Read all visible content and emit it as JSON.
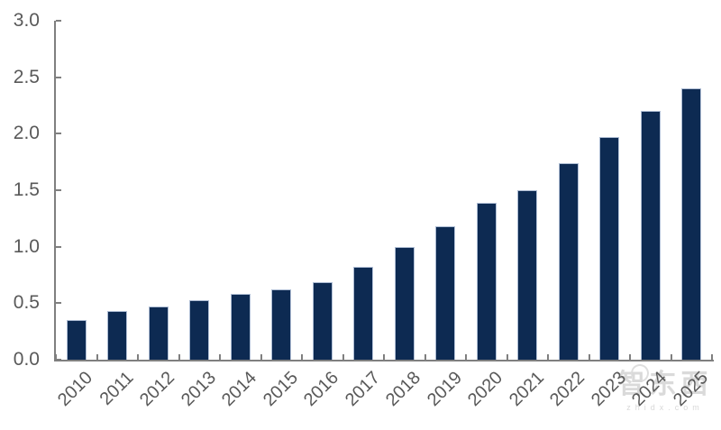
{
  "chart_data": {
    "type": "bar",
    "title": "",
    "xlabel": "",
    "ylabel": "",
    "categories": [
      "2010",
      "2011",
      "2012",
      "2013",
      "2014",
      "2015",
      "2016",
      "2017",
      "2018",
      "2019",
      "2020",
      "2021",
      "2022",
      "2023",
      "2024",
      "2025"
    ],
    "values": [
      0.35,
      0.43,
      0.47,
      0.53,
      0.58,
      0.62,
      0.69,
      0.82,
      1.0,
      1.18,
      1.39,
      1.5,
      1.74,
      1.97,
      2.2,
      2.4
    ],
    "ylim": [
      0.0,
      3.0
    ],
    "ytick_labels": [
      "0.0",
      "0.5",
      "1.0",
      "1.5",
      "2.0",
      "2.5",
      "3.0"
    ],
    "grid": "off",
    "legend": "none",
    "tick_style": "inside",
    "colors": {
      "bar_fill": "#0d2a52",
      "bar_border": "#aebdd4",
      "axis": "#7f7f7f",
      "tick_label": "#595959"
    }
  },
  "watermark": {
    "logo_text": "智东西",
    "domain_text": "zhidx.com",
    "color": "#d9d9d9"
  }
}
